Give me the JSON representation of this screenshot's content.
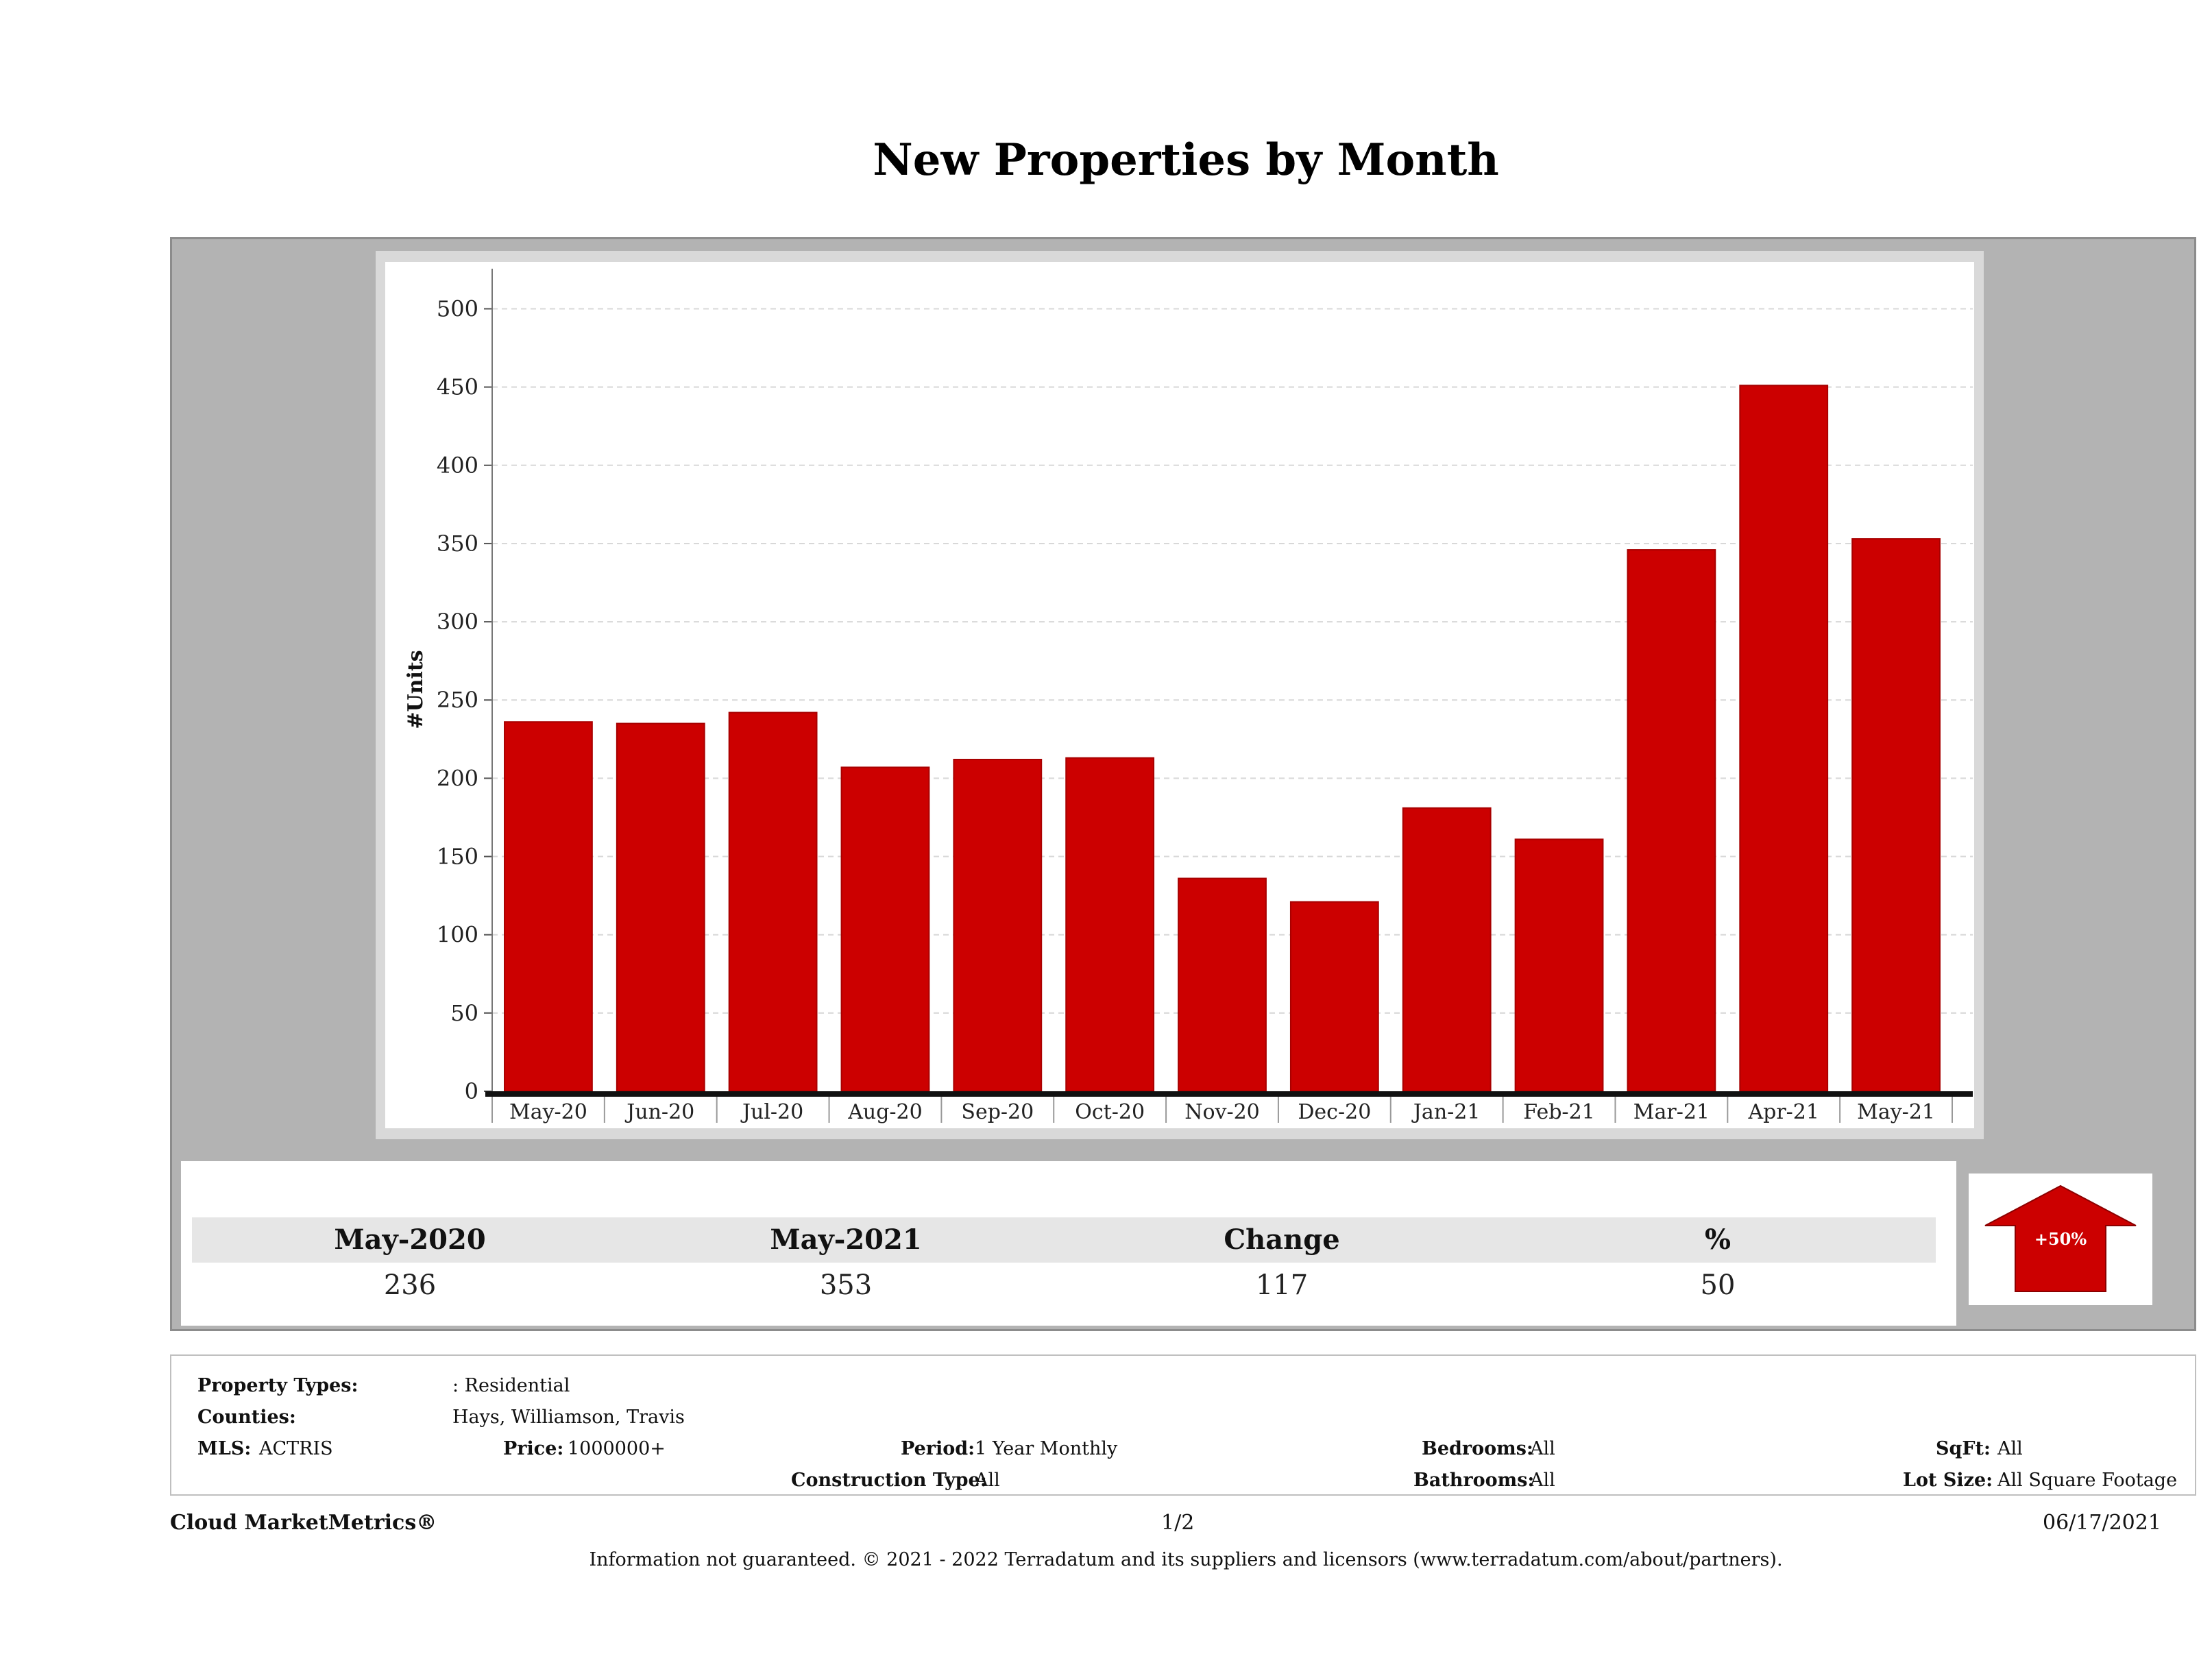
{
  "header": {
    "title": "New Properties by Month"
  },
  "chart_data": {
    "type": "bar",
    "title": "New Properties by Month",
    "ylabel": "#Units",
    "xlabel": "",
    "categories": [
      "May-20",
      "Jun-20",
      "Jul-20",
      "Aug-20",
      "Sep-20",
      "Oct-20",
      "Nov-20",
      "Dec-20",
      "Jan-21",
      "Feb-21",
      "Mar-21",
      "Apr-21",
      "May-21"
    ],
    "values": [
      236,
      235,
      242,
      207,
      212,
      213,
      136,
      121,
      181,
      161,
      346,
      451,
      353
    ],
    "ylim": [
      0,
      530
    ],
    "yticks": [
      0,
      50,
      100,
      150,
      200,
      250,
      300,
      350,
      400,
      450,
      500
    ],
    "grid": true,
    "bar_color": "#cc0000"
  },
  "summary": {
    "headers": [
      "May-2020",
      "May-2021",
      "Change",
      "%"
    ],
    "values": [
      "236",
      "353",
      "117",
      "50"
    ],
    "badge": "+50%",
    "badge_color": "#cc0000"
  },
  "info": {
    "property_types_label": "Property Types:",
    "property_types_value": ": Residential",
    "counties_label": "Counties:",
    "counties_value": "Hays, Williamson, Travis",
    "mls_label": "MLS:",
    "mls_value": "ACTRIS",
    "price_label": "Price:",
    "price_value": "1000000+",
    "period_label": "Period:",
    "period_value": "1 Year Monthly",
    "construction_label": "Construction Type:",
    "construction_value": "All",
    "bedrooms_label": "Bedrooms:",
    "bedrooms_value": "All",
    "bathrooms_label": "Bathrooms:",
    "bathrooms_value": "All",
    "sqft_label": "SqFt:",
    "sqft_value": "All",
    "lotsize_label": "Lot Size:",
    "lotsize_value": "All Square Footage"
  },
  "footer": {
    "brand": "Cloud MarketMetrics®",
    "page": "1/2",
    "date": "06/17/2021",
    "disclaimer": "Information not guaranteed. © 2021 - 2022 Terradatum and its suppliers and licensors (www.terradatum.com/about/partners)."
  }
}
